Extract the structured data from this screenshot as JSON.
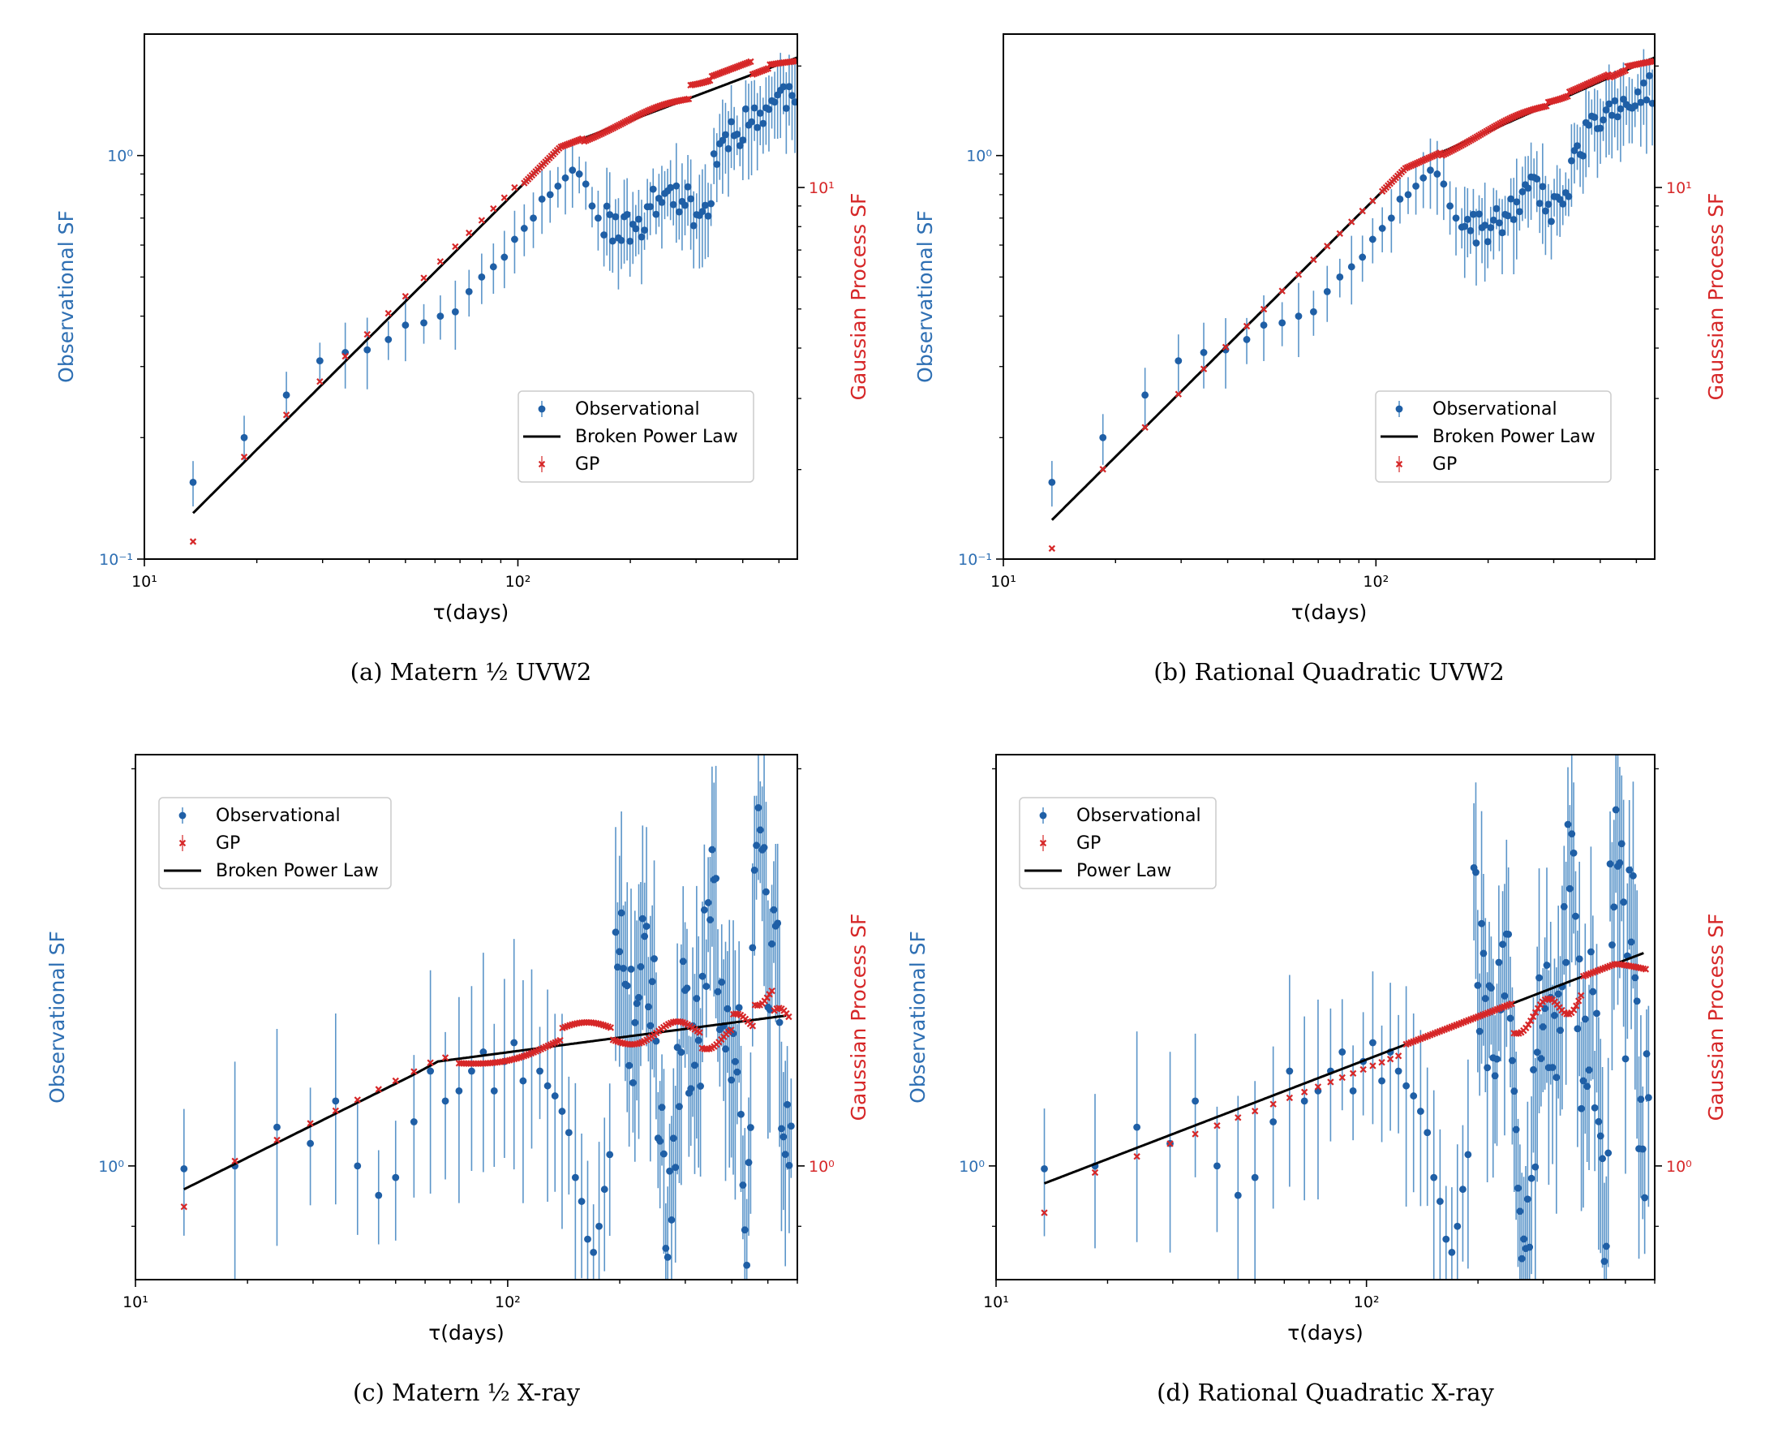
{
  "colors": {
    "observational": "#1f5fa6",
    "observational_err": "#5b95c9",
    "gp": "#d62728",
    "fit": "#000000",
    "axis_left": "#2e6fb3",
    "axis_right": "#d62728"
  },
  "chart_data": [
    {
      "type": "scatter",
      "title": "",
      "caption": "(a)  Matern ½ UVW2",
      "xlabel": "τ(days)",
      "ylabel": "Observational SF",
      "ylabel_right": "Gaussian Process SF",
      "xscale": "log",
      "yscale": "log",
      "xlim": [
        10,
        560
      ],
      "ylim": [
        0.1,
        2.0
      ],
      "ylim_right": [
        1.2,
        24
      ],
      "x_ticks": [
        {
          "value": 10,
          "label": "10¹"
        },
        {
          "value": 100,
          "label": "10²"
        }
      ],
      "y_ticks": [
        {
          "value": 0.1,
          "label": "10⁻¹"
        },
        {
          "value": 1,
          "label": "10⁰"
        }
      ],
      "y_right_ticks": [
        {
          "value": 10,
          "label": "10¹"
        }
      ],
      "legend": {
        "position": "center-right",
        "entries": [
          "Observational",
          "Broken Power Law",
          "GP"
        ],
        "order": [
          "obs",
          "fit",
          "gp"
        ]
      },
      "fit": {
        "name": "Broken Power Law",
        "x": [
          13.5,
          130,
          560
        ],
        "y": [
          0.13,
          1.05,
          1.75
        ]
      },
      "preset": "uv",
      "variant": "a"
    },
    {
      "type": "scatter",
      "title": "",
      "caption": "(b)  Rational Quadratic UVW2",
      "xlabel": "τ(days)",
      "ylabel": "Observational SF",
      "ylabel_right": "Gaussian Process SF",
      "xscale": "log",
      "yscale": "log",
      "xlim": [
        10,
        560
      ],
      "ylim": [
        0.1,
        2.0
      ],
      "ylim_right": [
        1.2,
        24
      ],
      "x_ticks": [
        {
          "value": 10,
          "label": "10¹"
        },
        {
          "value": 100,
          "label": "10²"
        }
      ],
      "y_ticks": [
        {
          "value": 0.1,
          "label": "10⁻¹"
        },
        {
          "value": 1,
          "label": "10⁰"
        }
      ],
      "y_right_ticks": [
        {
          "value": 10,
          "label": "10¹"
        }
      ],
      "legend": {
        "position": "center-right",
        "entries": [
          "Observational",
          "Broken Power Law",
          "GP"
        ],
        "order": [
          "obs",
          "fit",
          "gp"
        ]
      },
      "fit": {
        "name": "Broken Power Law",
        "x": [
          13.5,
          120,
          560
        ],
        "y": [
          0.125,
          0.93,
          1.75
        ]
      },
      "preset": "uv",
      "variant": "b"
    },
    {
      "type": "scatter",
      "title": "",
      "caption": "(c)  Matern ½ X-ray",
      "xlabel": "τ(days)",
      "ylabel": "Observational SF",
      "ylabel_right": "Gaussian Process SF",
      "xscale": "log",
      "yscale": "log",
      "xlim": [
        10,
        600
      ],
      "ylim": [
        0.82,
        2.05
      ],
      "ylim_right": [
        0.82,
        2.05
      ],
      "x_ticks": [
        {
          "value": 10,
          "label": "10¹"
        },
        {
          "value": 100,
          "label": "10²"
        }
      ],
      "y_ticks": [
        {
          "value": 1,
          "label": "10⁰"
        }
      ],
      "y_right_ticks": [
        {
          "value": 1,
          "label": "10⁰"
        }
      ],
      "legend": {
        "position": "upper-left",
        "entries": [
          "Observational",
          "GP",
          "Broken Power Law"
        ],
        "order": [
          "obs",
          "gp",
          "fit"
        ]
      },
      "fit": {
        "name": "Broken Power Law",
        "x": [
          13.5,
          55,
          65,
          560
        ],
        "y": [
          0.96,
          1.17,
          1.2,
          1.3
        ]
      },
      "preset": "xray",
      "variant": "c"
    },
    {
      "type": "scatter",
      "title": "",
      "caption": "(d)  Rational Quadratic X-ray",
      "xlabel": "τ(days)",
      "ylabel": "Observational SF",
      "ylabel_right": "Gaussian Process SF",
      "xscale": "log",
      "yscale": "log",
      "xlim": [
        10,
        600
      ],
      "ylim": [
        0.82,
        2.05
      ],
      "ylim_right": [
        0.82,
        2.05
      ],
      "x_ticks": [
        {
          "value": 10,
          "label": "10¹"
        },
        {
          "value": 100,
          "label": "10²"
        }
      ],
      "y_ticks": [
        {
          "value": 1,
          "label": "10⁰"
        }
      ],
      "y_right_ticks": [
        {
          "value": 1,
          "label": "10⁰"
        }
      ],
      "legend": {
        "position": "upper-left",
        "entries": [
          "Observational",
          "GP",
          "Power Law"
        ],
        "order": [
          "obs",
          "gp",
          "fit"
        ]
      },
      "fit": {
        "name": "Power Law",
        "x": [
          13.5,
          560
        ],
        "y": [
          0.97,
          1.45
        ]
      },
      "preset": "xray",
      "variant": "d"
    }
  ]
}
